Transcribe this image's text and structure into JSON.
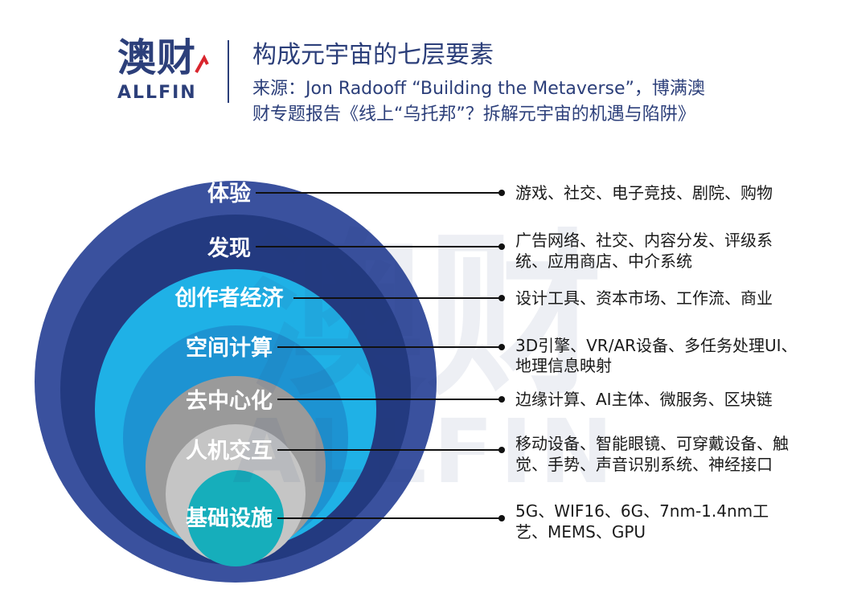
{
  "logo": {
    "cn": "澳财",
    "en": "ALLFIN"
  },
  "title": "构成元宇宙的七层要素",
  "source": {
    "line1": "来源：Jon Radooff  “Building the Metaverse”，博满澳",
    "line2": "财专题报告《线上“乌托邦”？拆解元宇宙的机遇与陷阱》"
  },
  "watermark": {
    "cn": "澳财",
    "en": "ALLFIN"
  },
  "colors": {
    "brand": "#2c3f7a",
    "layer_experience": "#3a519e",
    "layer_discovery": "#233a80",
    "layer_creator": "#1fb1e6",
    "layer_spatial": "#1d93d2",
    "layer_decentral": "#9a9a9a",
    "layer_hci": "#c5c5c5",
    "layer_infra": "#16aebb"
  },
  "layers": [
    {
      "name": "体验",
      "desc": [
        "游戏、社交、电子竞技、剧院、购物"
      ]
    },
    {
      "name": "发现",
      "desc": [
        "广告网络、社交、内容分发、评级系",
        "统、应用商店、中介系统"
      ]
    },
    {
      "name": "创作者经济",
      "desc": [
        "设计工具、资本市场、工作流、商业"
      ]
    },
    {
      "name": "空间计算",
      "desc": [
        "3D引擎、VR/AR设备、多任务处理UI、",
        "地理信息映射"
      ]
    },
    {
      "name": "去中心化",
      "desc": [
        "边缘计算、AI主体、微服务、区块链"
      ]
    },
    {
      "name": "人机交互",
      "desc": [
        "移动设备、智能眼镜、可穿戴设备、触",
        "觉、手势、声音识别系统、神经接口"
      ]
    },
    {
      "name": "基础设施",
      "desc": [
        "5G、WIF16、6G、7nm-1.4nm工",
        "艺、MEMS、GPU"
      ]
    }
  ]
}
